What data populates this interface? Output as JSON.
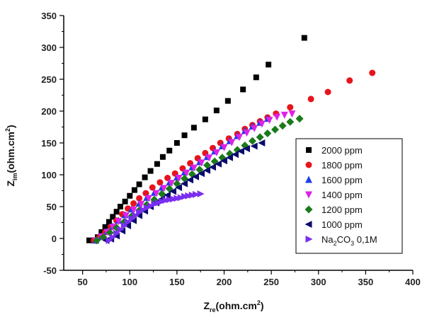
{
  "chart_data": {
    "type": "scatter",
    "title": "",
    "xlabel": {
      "main": "Z",
      "sub": "re",
      "rest": "(ohm.cm",
      "sup": "2",
      "end": ")"
    },
    "ylabel": {
      "main": "Z",
      "sub": "im",
      "rest": "(ohm.cm",
      "sup": "2",
      "end": ")"
    },
    "xlim": [
      30,
      400
    ],
    "ylim": [
      -50,
      350
    ],
    "xticks": [
      50,
      100,
      150,
      200,
      250,
      300,
      350,
      400
    ],
    "yticks": [
      -50,
      0,
      50,
      100,
      150,
      200,
      250,
      300,
      350
    ],
    "grid": false,
    "legend_position": "right",
    "series": [
      {
        "name": "2000 ppm",
        "color": "#000000",
        "marker": "square",
        "points": [
          [
            57,
            -3
          ],
          [
            62,
            -3
          ],
          [
            66,
            2
          ],
          [
            70,
            10
          ],
          [
            74,
            18
          ],
          [
            78,
            26
          ],
          [
            82,
            34
          ],
          [
            86,
            42
          ],
          [
            90,
            50
          ],
          [
            95,
            58
          ],
          [
            100,
            67
          ],
          [
            105,
            76
          ],
          [
            110,
            85
          ],
          [
            116,
            96
          ],
          [
            122,
            106
          ],
          [
            129,
            117
          ],
          [
            135,
            128
          ],
          [
            142,
            138
          ],
          [
            150,
            150
          ],
          [
            158,
            162
          ],
          [
            168,
            174
          ],
          [
            180,
            187
          ],
          [
            192,
            201
          ],
          [
            204,
            216
          ],
          [
            220,
            234
          ],
          [
            234,
            253
          ],
          [
            247,
            273
          ],
          [
            285,
            315
          ]
        ]
      },
      {
        "name": "1800 ppm",
        "color": "#e8141b",
        "marker": "circle",
        "points": [
          [
            62,
            -3
          ],
          [
            68,
            2
          ],
          [
            74,
            10
          ],
          [
            80,
            18
          ],
          [
            86,
            28
          ],
          [
            92,
            38
          ],
          [
            98,
            47
          ],
          [
            104,
            55
          ],
          [
            110,
            63
          ],
          [
            117,
            71
          ],
          [
            124,
            80
          ],
          [
            132,
            88
          ],
          [
            140,
            95
          ],
          [
            148,
            102
          ],
          [
            156,
            110
          ],
          [
            164,
            118
          ],
          [
            172,
            126
          ],
          [
            180,
            134
          ],
          [
            188,
            142
          ],
          [
            196,
            150
          ],
          [
            205,
            157
          ],
          [
            214,
            164
          ],
          [
            222,
            172
          ],
          [
            230,
            178
          ],
          [
            238,
            184
          ],
          [
            246,
            190
          ],
          [
            255,
            196
          ],
          [
            270,
            206
          ],
          [
            292,
            219
          ],
          [
            310,
            230
          ],
          [
            333,
            248
          ],
          [
            357,
            260
          ]
        ]
      },
      {
        "name": "1600 ppm",
        "color": "#1f3fe6",
        "marker": "triangle-up",
        "points": [
          [
            64,
            -3
          ],
          [
            70,
            3
          ],
          [
            76,
            11
          ],
          [
            82,
            19
          ],
          [
            88,
            28
          ],
          [
            95,
            37
          ],
          [
            102,
            46
          ],
          [
            110,
            55
          ],
          [
            118,
            64
          ],
          [
            126,
            72
          ],
          [
            134,
            80
          ],
          [
            142,
            88
          ],
          [
            150,
            96
          ],
          [
            158,
            104
          ],
          [
            166,
            112
          ],
          [
            174,
            120
          ],
          [
            182,
            128
          ],
          [
            190,
            137
          ],
          [
            198,
            145
          ],
          [
            206,
            153
          ],
          [
            214,
            161
          ],
          [
            222,
            169
          ],
          [
            230,
            176
          ],
          [
            238,
            182
          ],
          [
            246,
            188
          ]
        ]
      },
      {
        "name": "1400 ppm",
        "color": "#e020e8",
        "marker": "triangle-down",
        "points": [
          [
            64,
            -3
          ],
          [
            70,
            3
          ],
          [
            76,
            10
          ],
          [
            82,
            18
          ],
          [
            88,
            27
          ],
          [
            96,
            36
          ],
          [
            104,
            45
          ],
          [
            112,
            54
          ],
          [
            120,
            63
          ],
          [
            128,
            71
          ],
          [
            136,
            79
          ],
          [
            144,
            87
          ],
          [
            152,
            95
          ],
          [
            160,
            103
          ],
          [
            168,
            111
          ],
          [
            176,
            119
          ],
          [
            184,
            127
          ],
          [
            192,
            135
          ],
          [
            200,
            143
          ],
          [
            208,
            151
          ],
          [
            216,
            159
          ],
          [
            224,
            166
          ],
          [
            232,
            173
          ],
          [
            240,
            180
          ],
          [
            248,
            186
          ],
          [
            256,
            191
          ],
          [
            264,
            194
          ],
          [
            272,
            196
          ]
        ]
      },
      {
        "name": "1200 ppm",
        "color": "#1a7a1a",
        "marker": "diamond",
        "points": [
          [
            65,
            -3
          ],
          [
            72,
            2
          ],
          [
            79,
            9
          ],
          [
            86,
            17
          ],
          [
            94,
            26
          ],
          [
            102,
            35
          ],
          [
            110,
            44
          ],
          [
            118,
            53
          ],
          [
            126,
            61
          ],
          [
            134,
            70
          ],
          [
            142,
            78
          ],
          [
            150,
            86
          ],
          [
            158,
            94
          ],
          [
            166,
            101
          ],
          [
            174,
            108
          ],
          [
            182,
            115
          ],
          [
            190,
            121
          ],
          [
            198,
            127
          ],
          [
            206,
            133
          ],
          [
            214,
            139
          ],
          [
            222,
            146
          ],
          [
            230,
            153
          ],
          [
            238,
            159
          ],
          [
            246,
            165
          ],
          [
            254,
            171
          ],
          [
            262,
            177
          ],
          [
            270,
            183
          ],
          [
            280,
            188
          ]
        ]
      },
      {
        "name": "1000 ppm",
        "color": "#0a0a6e",
        "marker": "triangle-left",
        "points": [
          [
            75,
            -3
          ],
          [
            80,
            -1
          ],
          [
            86,
            4
          ],
          [
            92,
            12
          ],
          [
            98,
            20
          ],
          [
            104,
            28
          ],
          [
            110,
            36
          ],
          [
            116,
            43
          ],
          [
            122,
            50
          ],
          [
            128,
            56
          ],
          [
            134,
            62
          ],
          [
            140,
            68
          ],
          [
            146,
            74
          ],
          [
            152,
            80
          ],
          [
            158,
            86
          ],
          [
            164,
            92
          ],
          [
            170,
            97
          ],
          [
            176,
            102
          ],
          [
            182,
            107
          ],
          [
            188,
            112
          ],
          [
            194,
            117
          ],
          [
            200,
            122
          ],
          [
            206,
            127
          ],
          [
            212,
            132
          ],
          [
            218,
            137
          ],
          [
            224,
            141
          ],
          [
            232,
            145
          ],
          [
            240,
            150
          ]
        ]
      },
      {
        "name": "Na2CO3 0,1M",
        "color": "#7a2ef0",
        "marker": "triangle-right",
        "legend_label": {
          "a": "Na",
          "sub1": "2",
          "b": "CO",
          "sub2": "3",
          "c": " 0,1M"
        },
        "points": [
          [
            78,
            -3
          ],
          [
            82,
            2
          ],
          [
            86,
            8
          ],
          [
            90,
            14
          ],
          [
            94,
            20
          ],
          [
            98,
            26
          ],
          [
            102,
            31
          ],
          [
            106,
            36
          ],
          [
            110,
            41
          ],
          [
            114,
            45
          ],
          [
            118,
            48
          ],
          [
            122,
            51
          ],
          [
            126,
            54
          ],
          [
            130,
            56
          ],
          [
            134,
            58
          ],
          [
            138,
            60
          ],
          [
            142,
            61
          ],
          [
            146,
            62
          ],
          [
            150,
            63
          ],
          [
            154,
            64
          ],
          [
            158,
            66
          ],
          [
            162,
            67
          ],
          [
            166,
            68
          ],
          [
            170,
            69
          ],
          [
            175,
            70
          ]
        ]
      }
    ]
  }
}
